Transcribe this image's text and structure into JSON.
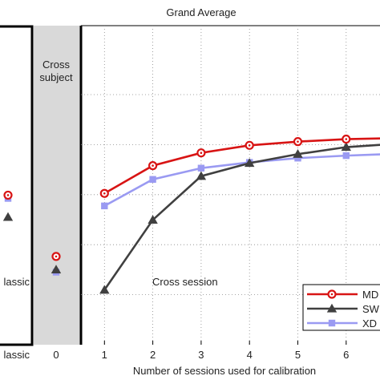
{
  "chart_data": {
    "type": "line",
    "title": "Grand Average",
    "xlabel": "Number of sessions used for calibration",
    "ylabel": "",
    "x": [
      1,
      2,
      3,
      4,
      5,
      6,
      7
    ],
    "xlim": [
      -1.35,
      6.7
    ],
    "ylim": [
      0,
      1
    ],
    "x_tick_labels": [
      "lassic",
      "0",
      "1",
      "2",
      "3",
      "4",
      "5",
      "6"
    ],
    "x_tick_values": [
      -1,
      0,
      1,
      2,
      3,
      4,
      5,
      6
    ],
    "grid": true,
    "legend_position": "bottom-right",
    "panels": {
      "classic": {
        "label": "lassic"
      },
      "cross_subject": {
        "label": "Cross\nsubject",
        "line1": "Cross",
        "line2": "subject"
      }
    },
    "annotations": [
      {
        "text": "Cross session"
      }
    ],
    "series": [
      {
        "name": "MD",
        "color": "#d81414",
        "marker": "circle",
        "values": [
          0.605,
          0.716,
          0.767,
          0.797,
          0.812,
          0.822,
          0.826
        ],
        "classic_value": 0.598,
        "cross_subject_value": 0.353
      },
      {
        "name": "SW",
        "color": "#404040",
        "marker": "triangle",
        "values": [
          0.219,
          0.499,
          0.674,
          0.726,
          0.762,
          0.79,
          0.803
        ],
        "classic_value": 0.51,
        "cross_subject_value": 0.3
      },
      {
        "name": "XD",
        "color": "#9a9af2",
        "marker": "square",
        "values": [
          0.555,
          0.661,
          0.706,
          0.729,
          0.746,
          0.756,
          0.763
        ],
        "classic_value": 0.585,
        "cross_subject_value": 0.29
      }
    ]
  }
}
